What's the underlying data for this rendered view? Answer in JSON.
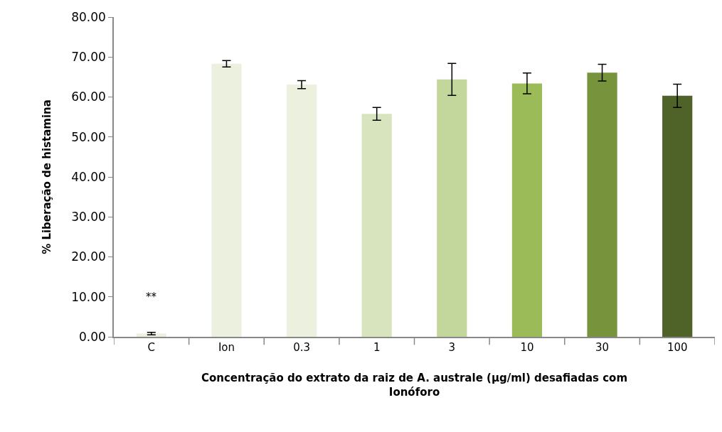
{
  "chart_data": {
    "type": "bar",
    "xlabel": "Concentração do extrato da raiz de A. australe (µg/ml) desafiadas com Ionóforo",
    "ylabel": "% Liberação de histamina",
    "categories": [
      "C",
      "Ion",
      "0.3",
      "1",
      "3",
      "10",
      "30",
      "100"
    ],
    "values": [
      0.8,
      68.3,
      63.1,
      55.8,
      64.4,
      63.4,
      66.1,
      60.3
    ],
    "errors": [
      0.3,
      0.8,
      1.0,
      1.6,
      4.0,
      2.6,
      2.1,
      2.9
    ],
    "colors": [
      "#ebf0df",
      "#ebf0df",
      "#ebf0df",
      "#d7e4bd",
      "#c3d69b",
      "#9bbb59",
      "#77933c",
      "#4f6228"
    ],
    "ylim": [
      0,
      80
    ],
    "yticks": [
      {
        "value": 0,
        "label": "0.00"
      },
      {
        "value": 10,
        "label": "10.00"
      },
      {
        "value": 20,
        "label": "20.00"
      },
      {
        "value": 30,
        "label": "30.00"
      },
      {
        "value": 40,
        "label": "40.00"
      },
      {
        "value": 50,
        "label": "50.00"
      },
      {
        "value": 60,
        "label": "60.00"
      },
      {
        "value": 70,
        "label": "70.00"
      },
      {
        "value": 80,
        "label": "80.00"
      }
    ],
    "grid": false,
    "annotations": [
      "**"
    ]
  }
}
